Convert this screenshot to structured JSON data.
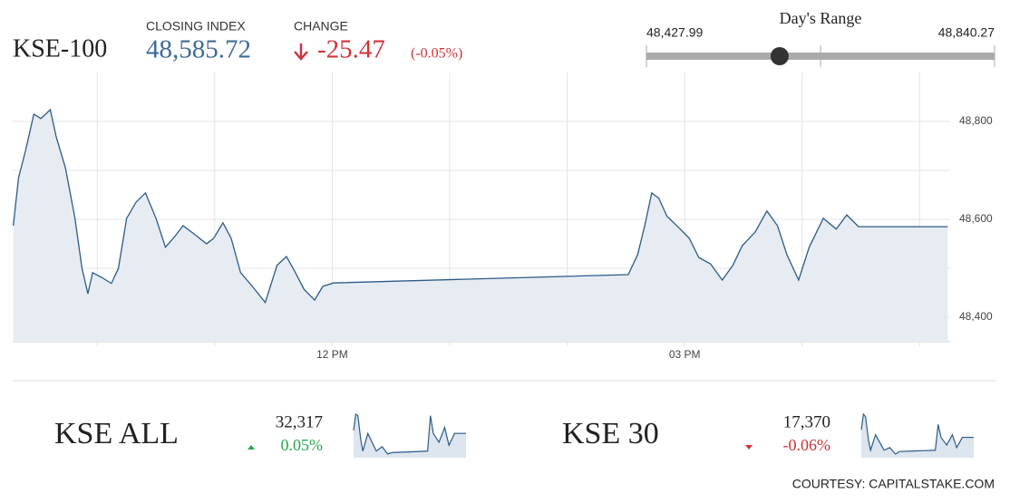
{
  "header": {
    "symbol": "KSE-100",
    "closing_label": "CLOSING INDEX",
    "closing_index": {
      "value": 48585.72,
      "label": "48,585.72"
    },
    "change_label": "CHANGE",
    "change": -25.47,
    "change_pct": {
      "value": -0.05,
      "label": "(-0.05%)"
    }
  },
  "day_range": {
    "title": "Day's Range",
    "low": {
      "value": 48427.99,
      "label": "48,427.99"
    },
    "high": {
      "value": 48840.27,
      "label": "48,840.27"
    }
  },
  "chart_data": {
    "type": "line",
    "color": "#2b5a8a",
    "fill": "#e6ecf2",
    "x": [
      9.285,
      9.33,
      9.39,
      9.46,
      9.52,
      9.6,
      9.65,
      9.73,
      9.81,
      9.87,
      9.92,
      9.96,
      10.04,
      10.12,
      10.18,
      10.25,
      10.33,
      10.41,
      10.5,
      10.58,
      10.66,
      10.73,
      10.83,
      10.93,
      10.99,
      11.07,
      11.14,
      11.22,
      11.32,
      11.43,
      11.53,
      11.61,
      11.68,
      11.76,
      11.85,
      11.92,
      12.01,
      14.52,
      14.6,
      14.66,
      14.72,
      14.78,
      14.85,
      14.95,
      15.04,
      15.12,
      15.22,
      15.32,
      15.41,
      15.49,
      15.6,
      15.7,
      15.79,
      15.87,
      15.97,
      16.06,
      16.18,
      16.29,
      16.38,
      16.48,
      17.24
    ],
    "values": [
      48587,
      48685,
      48741,
      48815,
      48806,
      48824,
      48769,
      48704,
      48602,
      48500,
      48448,
      48491,
      48481,
      48469,
      48500,
      48602,
      48635,
      48654,
      48602,
      48543,
      48565,
      48587,
      48569,
      48550,
      48561,
      48593,
      48561,
      48491,
      48463,
      48430,
      48506,
      48524,
      48494,
      48457,
      48435,
      48463,
      48470,
      48487,
      48528,
      48587,
      48654,
      48643,
      48606,
      48583,
      48561,
      48522,
      48509,
      48476,
      48506,
      48546,
      48574,
      48617,
      48587,
      48528,
      48476,
      48543,
      48602,
      48580,
      48609,
      48585,
      48585
    ],
    "xlim": [
      9.28,
      17.26
    ],
    "ylim": [
      48350,
      48900
    ],
    "xticks": [
      {
        "value": 10,
        "label": null
      },
      {
        "value": 11,
        "label": null
      },
      {
        "value": 12,
        "label": "12 PM"
      },
      {
        "value": 13,
        "label": null
      },
      {
        "value": 14,
        "label": null
      },
      {
        "value": 15,
        "label": "03 PM"
      },
      {
        "value": 16,
        "label": null
      },
      {
        "value": 17,
        "label": null
      }
    ],
    "yticks": [
      {
        "value": 48400,
        "label": "48,400"
      },
      {
        "value": 48500,
        "label": null
      },
      {
        "value": 48600,
        "label": "48,600"
      },
      {
        "value": 48700,
        "label": null
      },
      {
        "value": 48800,
        "label": "48,800"
      }
    ],
    "grid": true
  },
  "indices": [
    {
      "name": "KSE ALL",
      "value": {
        "value": 32317,
        "label": "32,317"
      },
      "change": {
        "value": 0.05,
        "label": "0.05%"
      },
      "sparkline": {
        "x": [
          9.3,
          9.45,
          9.6,
          9.8,
          9.95,
          10.3,
          10.6,
          10.9,
          11.3,
          11.7,
          12.0,
          14.5,
          14.7,
          14.9,
          15.3,
          15.7,
          16.0,
          16.4,
          17.2
        ],
        "values": [
          32330,
          32385,
          32380,
          32300,
          32260,
          32320,
          32290,
          32260,
          32275,
          32250,
          32255,
          32260,
          32380,
          32320,
          32290,
          32340,
          32280,
          32320,
          32320
        ]
      }
    },
    {
      "name": "KSE 30",
      "value": {
        "value": 17370,
        "label": "17,370"
      },
      "change": {
        "value": -0.06,
        "label": "-0.06%"
      },
      "sparkline": {
        "x": [
          9.3,
          9.45,
          9.6,
          9.8,
          9.95,
          10.3,
          10.6,
          10.9,
          11.3,
          11.7,
          12.0,
          14.5,
          14.7,
          14.9,
          15.3,
          15.7,
          16.0,
          16.4,
          17.2
        ],
        "values": [
          17380,
          17440,
          17430,
          17340,
          17300,
          17360,
          17330,
          17300,
          17310,
          17285,
          17295,
          17300,
          17400,
          17350,
          17320,
          17360,
          17310,
          17350,
          17350
        ]
      }
    }
  ],
  "courtesy": "COURTESY: CAPITALSTAKE.COM"
}
